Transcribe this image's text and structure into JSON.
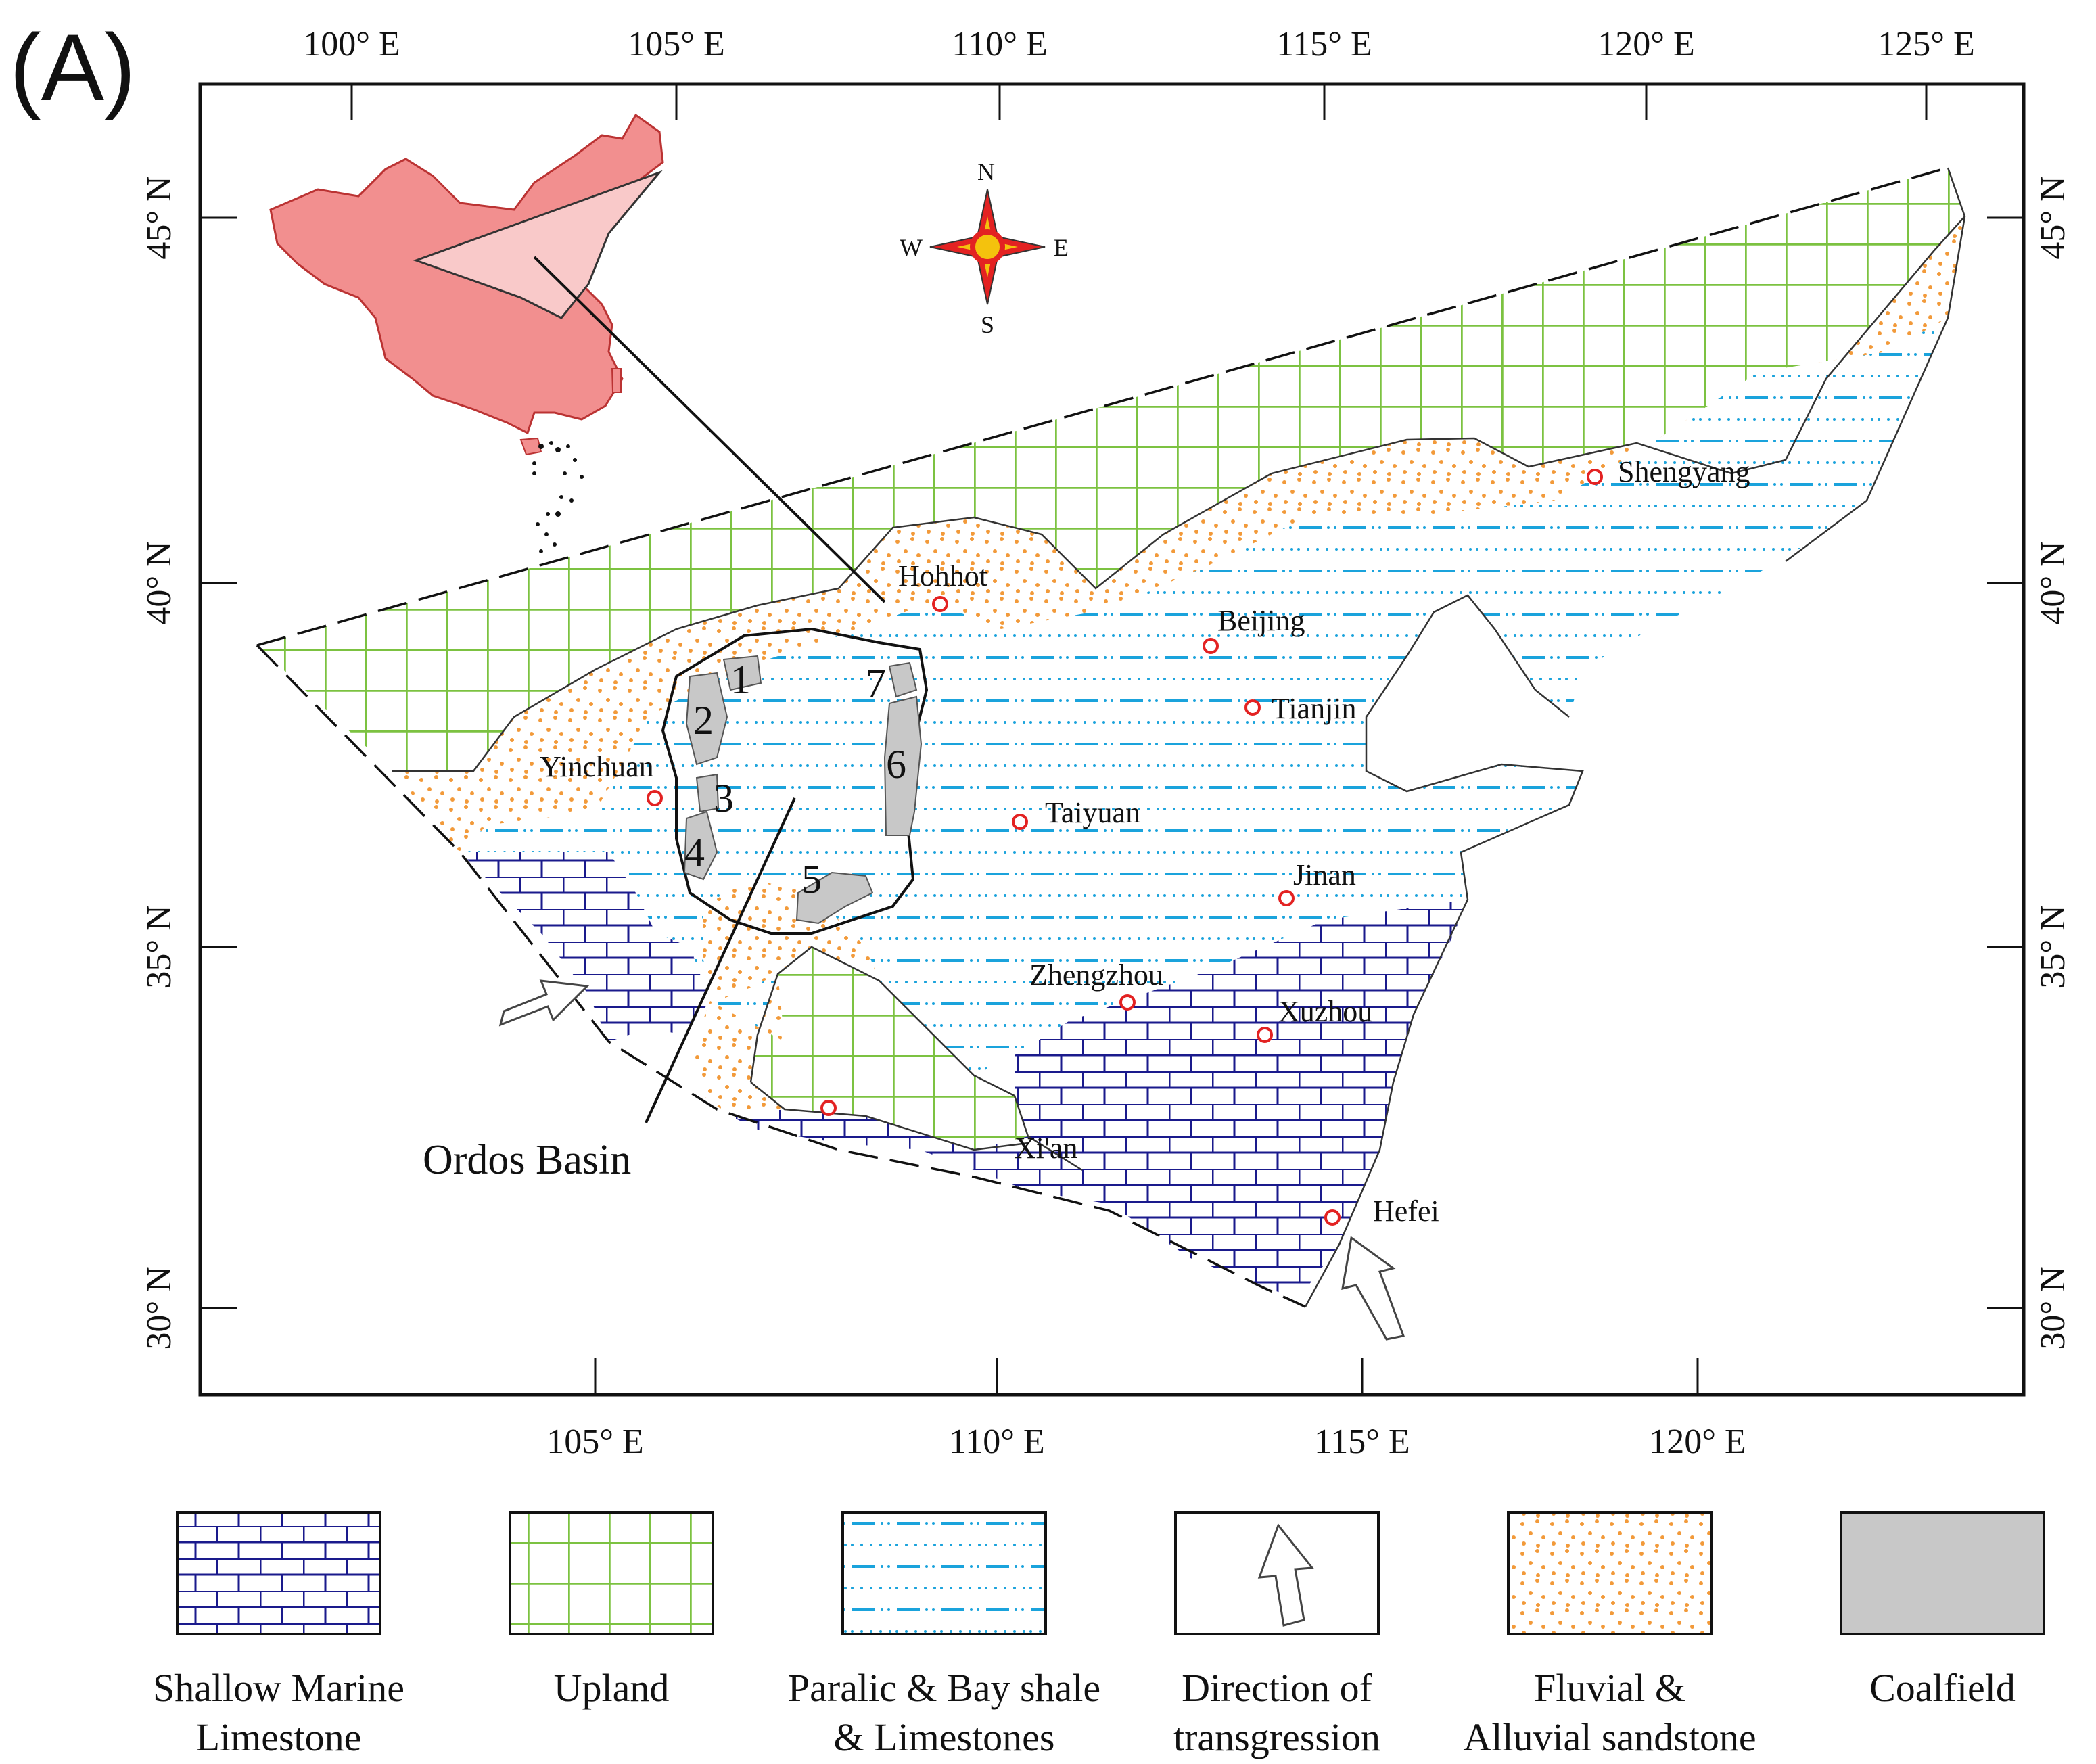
{
  "panel_label": "(A)",
  "axes": {
    "top_ticks": [
      "100° E",
      "105° E",
      "110° E",
      "115° E",
      "120° E",
      "125° E"
    ],
    "bottom_ticks": [
      "105° E",
      "110° E",
      "115° E",
      "120° E"
    ],
    "left_ticks": [
      "45° N",
      "40° N",
      "35° N",
      "30° N"
    ],
    "right_ticks": [
      "45° N",
      "40° N",
      "35° N",
      "30° N"
    ]
  },
  "compass": {
    "n": "N",
    "s": "S",
    "e": "E",
    "w": "W"
  },
  "cities": [
    "Hohhot",
    "Beijing",
    "Tianjin",
    "Shengyang",
    "Yinchuan",
    "Taiyuan",
    "Jinan",
    "Zhengzhou",
    "Xuzhou",
    "Xi'an",
    "Hefei"
  ],
  "basin_label": "Ordos Basin",
  "coalfields": [
    "1",
    "2",
    "3",
    "4",
    "5",
    "6",
    "7"
  ],
  "legend": [
    {
      "line1": "Shallow Marine",
      "line2": "Limestone"
    },
    {
      "line1": "Upland",
      "line2": ""
    },
    {
      "line1": "Paralic & Bay shale",
      "line2": "& Limestones"
    },
    {
      "line1": "Direction of",
      "line2": "transgression"
    },
    {
      "line1": "Fluvial &",
      "line2": "Alluvial sandstone"
    },
    {
      "line1": "Coalfield",
      "line2": ""
    }
  ],
  "colors": {
    "limestone": "#1a1a8c",
    "upland": "#7cc241",
    "shale_dash": "#1aa3dc",
    "sand_dot": "#f29a3a",
    "coalfield": "#c8c8c8",
    "city": "#e32222",
    "china": "#f28f8f"
  }
}
